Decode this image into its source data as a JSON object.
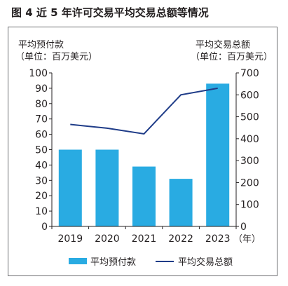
{
  "figure_title": "图 4   近 5 年许可交易平均交易总额等情况",
  "left_axis_title_line1": "平均预付款",
  "left_axis_title_line2": "（单位：百万美元）",
  "right_axis_title_line1": "平均交易总额",
  "right_axis_title_line2": "（单位：百万美元）",
  "x_unit_label": "（年）",
  "colors": {
    "bar": "#29abe2",
    "line": "#1f3c88",
    "axis": "#231f20"
  },
  "legend": {
    "bar_label": "平均预付款",
    "line_label": "平均交易总额"
  },
  "chart_data": {
    "type": "bar",
    "categories": [
      "2019",
      "2020",
      "2021",
      "2022",
      "2023"
    ],
    "series": [
      {
        "name": "平均预付款",
        "type": "bar",
        "axis": "left",
        "values": [
          50,
          50,
          39,
          31,
          93
        ]
      },
      {
        "name": "平均交易总额",
        "type": "line",
        "axis": "right",
        "values": [
          465,
          448,
          422,
          600,
          630
        ]
      }
    ],
    "y_left": {
      "ylim": [
        0,
        100
      ],
      "ticks": [
        "0",
        "10",
        "20",
        "30",
        "40",
        "50",
        "60",
        "70",
        "80",
        "90",
        "100"
      ]
    },
    "y_right": {
      "ylim": [
        0,
        700
      ],
      "ticks": [
        "0",
        "100",
        "200",
        "300",
        "400",
        "500",
        "600",
        "700"
      ]
    },
    "grid": false,
    "legend_position": "bottom"
  }
}
